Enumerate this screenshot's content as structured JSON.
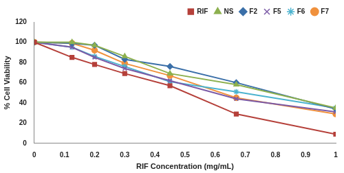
{
  "chart_data": {
    "type": "line",
    "x_label": "RIF Concentration (mg/mL)",
    "y_label": "% Cell Viability",
    "x": [
      0,
      0.125,
      0.2,
      0.3,
      0.45,
      0.67,
      1
    ],
    "series": [
      {
        "name": "RIF",
        "color": "#b5403a",
        "marker": "square",
        "values": [
          100,
          85,
          78,
          69,
          57,
          29,
          9
        ]
      },
      {
        "name": "NS",
        "color": "#8db04f",
        "marker": "triangle",
        "values": [
          100,
          100,
          97,
          86,
          69,
          58,
          35
        ]
      },
      {
        "name": "F2",
        "color": "#3a6fa8",
        "marker": "diamond",
        "values": [
          100,
          99,
          97,
          83,
          76,
          60,
          34
        ]
      },
      {
        "name": "F5",
        "color": "#7b5aa6",
        "marker": "x",
        "values": [
          100,
          95,
          85,
          74,
          62,
          44,
          31
        ]
      },
      {
        "name": "F6",
        "color": "#4bb3cf",
        "marker": "star",
        "values": [
          100,
          95,
          86,
          76,
          61,
          51,
          35
        ]
      },
      {
        "name": "F7",
        "color": "#f0913d",
        "marker": "circle",
        "values": [
          100,
          99,
          92,
          79,
          67,
          45,
          29
        ]
      }
    ],
    "xlim": [
      0,
      1
    ],
    "xticks": [
      0,
      0.1,
      0.2,
      0.3,
      0.4,
      0.5,
      0.6,
      0.7,
      0.8,
      0.9,
      1
    ],
    "ylim": [
      0,
      120
    ],
    "yticks": [
      0,
      20,
      40,
      60,
      80,
      100,
      120
    ],
    "grid": false,
    "legend": "upper right"
  }
}
